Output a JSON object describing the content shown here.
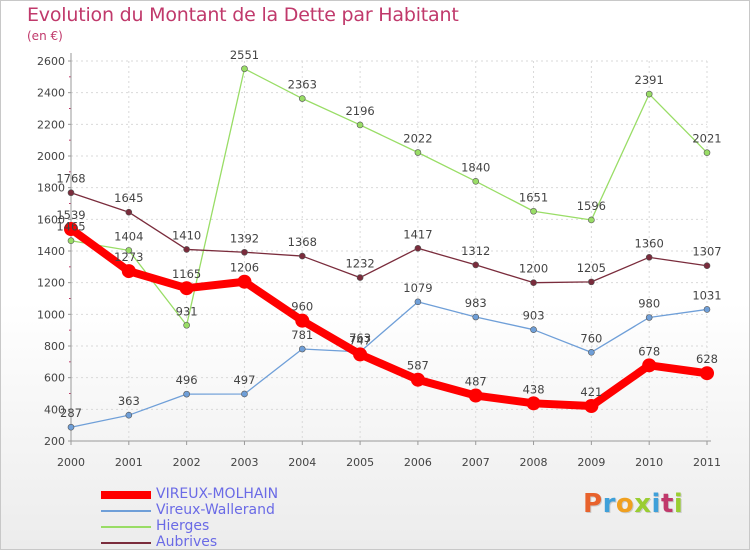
{
  "header": {
    "title": "Evolution du Montant de la Dette par Habitant",
    "unit": "(en €)"
  },
  "logo": {
    "text": "Proxiti",
    "colors": [
      "#e8622c",
      "#3fa0d9",
      "#f0a01f",
      "#9acd32",
      "#3fa0d9",
      "#c0396b",
      "#9acd32"
    ]
  },
  "chart_data": {
    "type": "line",
    "title": "Evolution du Montant de la Dette par Habitant",
    "subtitle": "(en €)",
    "xlabel": "",
    "ylabel": "",
    "categories": [
      "2000",
      "2001",
      "2002",
      "2003",
      "2004",
      "2005",
      "2006",
      "2007",
      "2008",
      "2009",
      "2010",
      "2011"
    ],
    "y_ticks": [
      "200",
      "400",
      "600",
      "800",
      "1000",
      "1200",
      "1400",
      "1600",
      "1800",
      "2000",
      "2200",
      "2400",
      "2600"
    ],
    "ylim": [
      200,
      2600
    ],
    "grid": true,
    "legend_position": "bottom-left",
    "series": [
      {
        "name": "VIREUX-MOLHAIN",
        "color": "#ff0000",
        "highlight": true,
        "values": [
          1539,
          1273,
          1165,
          1206,
          960,
          747,
          587,
          487,
          438,
          421,
          678,
          628
        ]
      },
      {
        "name": "Vireux-Wallerand",
        "color": "#6f9fd8",
        "highlight": false,
        "values": [
          287,
          363,
          496,
          497,
          781,
          763,
          1079,
          983,
          903,
          760,
          980,
          1031
        ]
      },
      {
        "name": "Hierges",
        "color": "#99dd66",
        "highlight": false,
        "values": [
          1465,
          1404,
          931,
          2551,
          2363,
          2196,
          2022,
          1840,
          1651,
          1596,
          2391,
          2021
        ]
      },
      {
        "name": "Aubrives",
        "color": "#7a2c3c",
        "highlight": false,
        "values": [
          1768,
          1645,
          1410,
          1392,
          1368,
          1232,
          1417,
          1312,
          1200,
          1205,
          1360,
          1307
        ]
      }
    ]
  }
}
